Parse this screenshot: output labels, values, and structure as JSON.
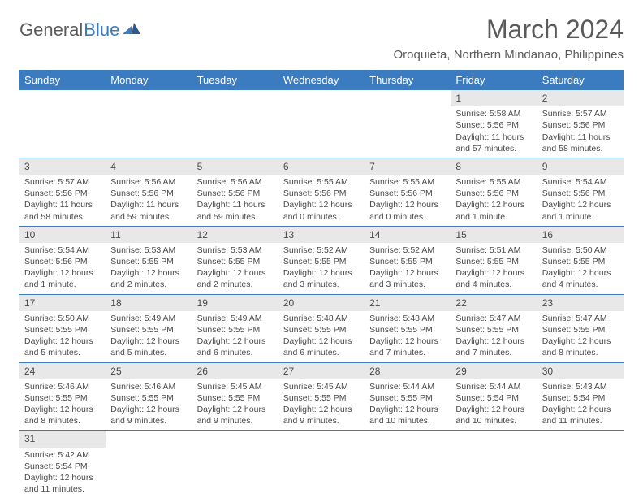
{
  "logo": {
    "part1": "General",
    "part2": "Blue"
  },
  "title": "March 2024",
  "location": "Oroquieta, Northern Mindanao, Philippines",
  "colors": {
    "header_bg": "#3b7bbf",
    "header_fg": "#ffffff",
    "daynum_bg": "#e8e8e8",
    "rule": "#3b7bbf"
  },
  "weekdays": [
    "Sunday",
    "Monday",
    "Tuesday",
    "Wednesday",
    "Thursday",
    "Friday",
    "Saturday"
  ],
  "weeks": [
    [
      null,
      null,
      null,
      null,
      null,
      {
        "n": "1",
        "sunrise": "Sunrise: 5:58 AM",
        "sunset": "Sunset: 5:56 PM",
        "daylight": "Daylight: 11 hours and 57 minutes."
      },
      {
        "n": "2",
        "sunrise": "Sunrise: 5:57 AM",
        "sunset": "Sunset: 5:56 PM",
        "daylight": "Daylight: 11 hours and 58 minutes."
      }
    ],
    [
      {
        "n": "3",
        "sunrise": "Sunrise: 5:57 AM",
        "sunset": "Sunset: 5:56 PM",
        "daylight": "Daylight: 11 hours and 58 minutes."
      },
      {
        "n": "4",
        "sunrise": "Sunrise: 5:56 AM",
        "sunset": "Sunset: 5:56 PM",
        "daylight": "Daylight: 11 hours and 59 minutes."
      },
      {
        "n": "5",
        "sunrise": "Sunrise: 5:56 AM",
        "sunset": "Sunset: 5:56 PM",
        "daylight": "Daylight: 11 hours and 59 minutes."
      },
      {
        "n": "6",
        "sunrise": "Sunrise: 5:55 AM",
        "sunset": "Sunset: 5:56 PM",
        "daylight": "Daylight: 12 hours and 0 minutes."
      },
      {
        "n": "7",
        "sunrise": "Sunrise: 5:55 AM",
        "sunset": "Sunset: 5:56 PM",
        "daylight": "Daylight: 12 hours and 0 minutes."
      },
      {
        "n": "8",
        "sunrise": "Sunrise: 5:55 AM",
        "sunset": "Sunset: 5:56 PM",
        "daylight": "Daylight: 12 hours and 1 minute."
      },
      {
        "n": "9",
        "sunrise": "Sunrise: 5:54 AM",
        "sunset": "Sunset: 5:56 PM",
        "daylight": "Daylight: 12 hours and 1 minute."
      }
    ],
    [
      {
        "n": "10",
        "sunrise": "Sunrise: 5:54 AM",
        "sunset": "Sunset: 5:56 PM",
        "daylight": "Daylight: 12 hours and 1 minute."
      },
      {
        "n": "11",
        "sunrise": "Sunrise: 5:53 AM",
        "sunset": "Sunset: 5:55 PM",
        "daylight": "Daylight: 12 hours and 2 minutes."
      },
      {
        "n": "12",
        "sunrise": "Sunrise: 5:53 AM",
        "sunset": "Sunset: 5:55 PM",
        "daylight": "Daylight: 12 hours and 2 minutes."
      },
      {
        "n": "13",
        "sunrise": "Sunrise: 5:52 AM",
        "sunset": "Sunset: 5:55 PM",
        "daylight": "Daylight: 12 hours and 3 minutes."
      },
      {
        "n": "14",
        "sunrise": "Sunrise: 5:52 AM",
        "sunset": "Sunset: 5:55 PM",
        "daylight": "Daylight: 12 hours and 3 minutes."
      },
      {
        "n": "15",
        "sunrise": "Sunrise: 5:51 AM",
        "sunset": "Sunset: 5:55 PM",
        "daylight": "Daylight: 12 hours and 4 minutes."
      },
      {
        "n": "16",
        "sunrise": "Sunrise: 5:50 AM",
        "sunset": "Sunset: 5:55 PM",
        "daylight": "Daylight: 12 hours and 4 minutes."
      }
    ],
    [
      {
        "n": "17",
        "sunrise": "Sunrise: 5:50 AM",
        "sunset": "Sunset: 5:55 PM",
        "daylight": "Daylight: 12 hours and 5 minutes."
      },
      {
        "n": "18",
        "sunrise": "Sunrise: 5:49 AM",
        "sunset": "Sunset: 5:55 PM",
        "daylight": "Daylight: 12 hours and 5 minutes."
      },
      {
        "n": "19",
        "sunrise": "Sunrise: 5:49 AM",
        "sunset": "Sunset: 5:55 PM",
        "daylight": "Daylight: 12 hours and 6 minutes."
      },
      {
        "n": "20",
        "sunrise": "Sunrise: 5:48 AM",
        "sunset": "Sunset: 5:55 PM",
        "daylight": "Daylight: 12 hours and 6 minutes."
      },
      {
        "n": "21",
        "sunrise": "Sunrise: 5:48 AM",
        "sunset": "Sunset: 5:55 PM",
        "daylight": "Daylight: 12 hours and 7 minutes."
      },
      {
        "n": "22",
        "sunrise": "Sunrise: 5:47 AM",
        "sunset": "Sunset: 5:55 PM",
        "daylight": "Daylight: 12 hours and 7 minutes."
      },
      {
        "n": "23",
        "sunrise": "Sunrise: 5:47 AM",
        "sunset": "Sunset: 5:55 PM",
        "daylight": "Daylight: 12 hours and 8 minutes."
      }
    ],
    [
      {
        "n": "24",
        "sunrise": "Sunrise: 5:46 AM",
        "sunset": "Sunset: 5:55 PM",
        "daylight": "Daylight: 12 hours and 8 minutes."
      },
      {
        "n": "25",
        "sunrise": "Sunrise: 5:46 AM",
        "sunset": "Sunset: 5:55 PM",
        "daylight": "Daylight: 12 hours and 9 minutes."
      },
      {
        "n": "26",
        "sunrise": "Sunrise: 5:45 AM",
        "sunset": "Sunset: 5:55 PM",
        "daylight": "Daylight: 12 hours and 9 minutes."
      },
      {
        "n": "27",
        "sunrise": "Sunrise: 5:45 AM",
        "sunset": "Sunset: 5:55 PM",
        "daylight": "Daylight: 12 hours and 9 minutes."
      },
      {
        "n": "28",
        "sunrise": "Sunrise: 5:44 AM",
        "sunset": "Sunset: 5:55 PM",
        "daylight": "Daylight: 12 hours and 10 minutes."
      },
      {
        "n": "29",
        "sunrise": "Sunrise: 5:44 AM",
        "sunset": "Sunset: 5:54 PM",
        "daylight": "Daylight: 12 hours and 10 minutes."
      },
      {
        "n": "30",
        "sunrise": "Sunrise: 5:43 AM",
        "sunset": "Sunset: 5:54 PM",
        "daylight": "Daylight: 12 hours and 11 minutes."
      }
    ],
    [
      {
        "n": "31",
        "sunrise": "Sunrise: 5:42 AM",
        "sunset": "Sunset: 5:54 PM",
        "daylight": "Daylight: 12 hours and 11 minutes."
      },
      null,
      null,
      null,
      null,
      null,
      null
    ]
  ]
}
